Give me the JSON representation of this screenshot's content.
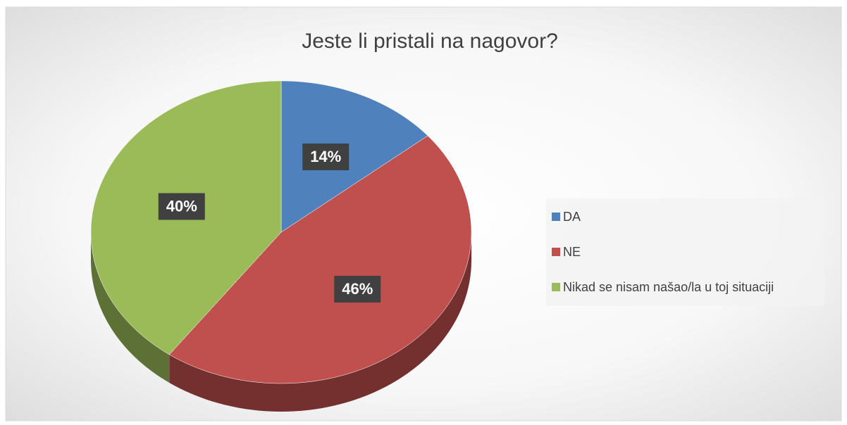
{
  "chart_data": {
    "type": "pie3d",
    "title": "Jeste li pristali na nagovor?",
    "categories": [
      "DA",
      "NE",
      "Nikad se nisam našao/la u toj situaciji"
    ],
    "values": [
      14,
      46,
      40
    ],
    "value_labels": [
      "14%",
      "46%",
      "40%"
    ],
    "colors": [
      "#4f81bd",
      "#c0504d",
      "#9bbb59"
    ],
    "legend": "right"
  }
}
